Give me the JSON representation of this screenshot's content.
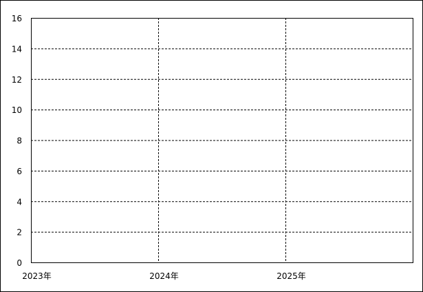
{
  "chart_data": {
    "type": "line",
    "title": "",
    "xlabel": "",
    "ylabel": "",
    "x_tick_labels": [
      "2023年",
      "2024年",
      "2025年"
    ],
    "y_ticks": [
      0,
      2,
      4,
      6,
      8,
      10,
      12,
      14,
      16
    ],
    "ylim": [
      0,
      16
    ],
    "grid": true,
    "grid_style": "dashed",
    "series": []
  }
}
